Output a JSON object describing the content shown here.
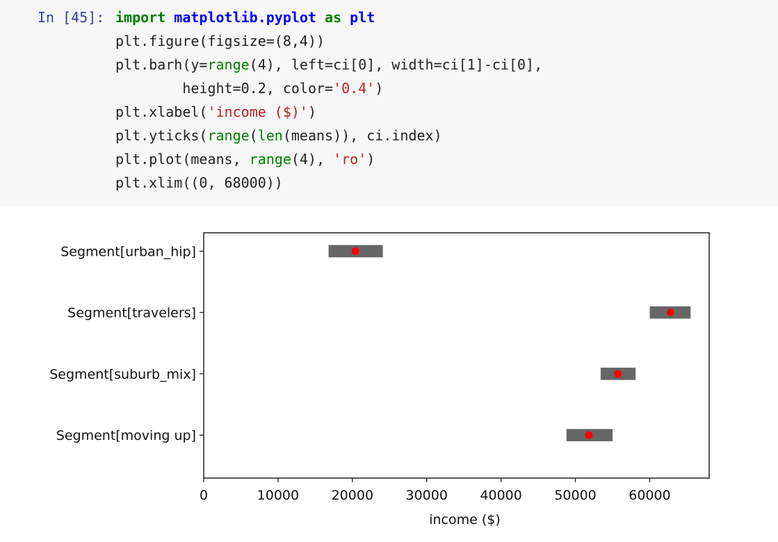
{
  "cell": {
    "prompt": "In [45]:",
    "code_lines": [
      [
        {
          "t": "kw",
          "v": "import "
        },
        {
          "t": "mod",
          "v": "matplotlib.pyplot"
        },
        {
          "t": "kw",
          "v": " as "
        },
        {
          "t": "mod",
          "v": "plt"
        }
      ],
      [
        {
          "t": "",
          "v": "plt.figure(figsize=(8,4))"
        }
      ],
      [
        {
          "t": "",
          "v": "plt.barh(y="
        },
        {
          "t": "bi",
          "v": "range"
        },
        {
          "t": "",
          "v": "(4), left=ci[0], width=ci[1]-ci[0],"
        }
      ],
      [
        {
          "t": "",
          "v": "        height=0.2, color="
        },
        {
          "t": "str",
          "v": "'0.4'"
        },
        {
          "t": "",
          "v": ")"
        }
      ],
      [
        {
          "t": "",
          "v": "plt.xlabel("
        },
        {
          "t": "str",
          "v": "'income ($)'"
        },
        {
          "t": "",
          "v": ")"
        }
      ],
      [
        {
          "t": "",
          "v": "plt.yticks("
        },
        {
          "t": "bi",
          "v": "range"
        },
        {
          "t": "",
          "v": "("
        },
        {
          "t": "bi",
          "v": "len"
        },
        {
          "t": "",
          "v": "(means)), ci.index)"
        }
      ],
      [
        {
          "t": "",
          "v": "plt.plot(means, "
        },
        {
          "t": "bi",
          "v": "range"
        },
        {
          "t": "",
          "v": "(4), "
        },
        {
          "t": "str",
          "v": "'ro'"
        },
        {
          "t": "",
          "v": ")"
        }
      ],
      [
        {
          "t": "",
          "v": "plt.xlim((0, 68000))"
        }
      ]
    ]
  },
  "chart_data": {
    "type": "barh",
    "xlabel": "income ($)",
    "xlim": [
      0,
      68000
    ],
    "xticks": [
      0,
      10000,
      20000,
      30000,
      40000,
      50000,
      60000
    ],
    "bar_color": "#666666",
    "point_color": "#ff0000",
    "categories": [
      "Segment[moving up]",
      "Segment[suburb_mix]",
      "Segment[travelers]",
      "Segment[urban_hip]"
    ],
    "ci_low": [
      48800,
      53400,
      60000,
      16800
    ],
    "ci_high": [
      55000,
      58100,
      65500,
      24100
    ],
    "means": [
      51800,
      55700,
      62800,
      20400
    ],
    "bar_height": 0.2
  }
}
